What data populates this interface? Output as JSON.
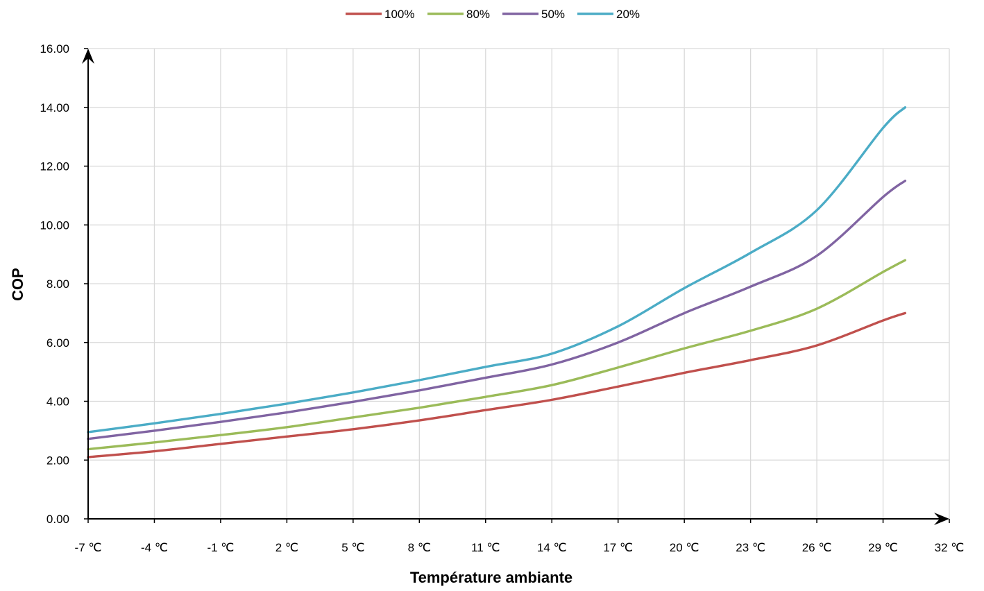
{
  "chart_data": {
    "type": "line",
    "xlabel": "Température ambiante",
    "ylabel": "COP",
    "xlim": [
      -7,
      32
    ],
    "ylim": [
      0,
      16
    ],
    "x_ticks": [
      {
        "value": -7,
        "label": "-7 ℃"
      },
      {
        "value": -4,
        "label": "-4 ℃"
      },
      {
        "value": -1,
        "label": "-1 ℃"
      },
      {
        "value": 2,
        "label": "2 ℃"
      },
      {
        "value": 5,
        "label": "5 ℃"
      },
      {
        "value": 8,
        "label": "8 ℃"
      },
      {
        "value": 11,
        "label": "11 ℃"
      },
      {
        "value": 14,
        "label": "14 ℃"
      },
      {
        "value": 17,
        "label": "17 ℃"
      },
      {
        "value": 20,
        "label": "20 ℃"
      },
      {
        "value": 23,
        "label": "23 ℃"
      },
      {
        "value": 26,
        "label": "26 ℃"
      },
      {
        "value": 29,
        "label": "29 ℃"
      },
      {
        "value": 32,
        "label": "32 ℃"
      }
    ],
    "y_ticks": [
      {
        "value": 0,
        "label": "0.00"
      },
      {
        "value": 2,
        "label": "2.00"
      },
      {
        "value": 4,
        "label": "4.00"
      },
      {
        "value": 6,
        "label": "6.00"
      },
      {
        "value": 8,
        "label": "8.00"
      },
      {
        "value": 10,
        "label": "10.00"
      },
      {
        "value": 12,
        "label": "12.00"
      },
      {
        "value": 14,
        "label": "14.00"
      },
      {
        "value": 16,
        "label": "16.00"
      }
    ],
    "grid": true,
    "legend_position": "top",
    "x": [
      -7,
      -4,
      -1,
      2,
      5,
      8,
      11,
      14,
      17,
      20,
      23,
      26,
      29,
      30
    ],
    "series": [
      {
        "name": "100%",
        "color": "#c0504d",
        "values": [
          2.1,
          2.3,
          2.55,
          2.8,
          3.05,
          3.35,
          3.7,
          4.05,
          4.5,
          4.97,
          5.4,
          5.9,
          6.75,
          7.0
        ]
      },
      {
        "name": "80%",
        "color": "#9bbb59",
        "values": [
          2.37,
          2.6,
          2.85,
          3.12,
          3.45,
          3.78,
          4.15,
          4.55,
          5.15,
          5.8,
          6.4,
          7.15,
          8.4,
          8.8
        ]
      },
      {
        "name": "50%",
        "color": "#8064a2",
        "values": [
          2.72,
          3.0,
          3.3,
          3.62,
          3.98,
          4.37,
          4.8,
          5.25,
          6.0,
          7.0,
          7.9,
          8.95,
          10.95,
          11.5
        ]
      },
      {
        "name": "20%",
        "color": "#4bacc6",
        "values": [
          2.95,
          3.25,
          3.57,
          3.92,
          4.3,
          4.72,
          5.17,
          5.62,
          6.55,
          7.85,
          9.05,
          10.5,
          13.3,
          14.0
        ]
      }
    ]
  }
}
